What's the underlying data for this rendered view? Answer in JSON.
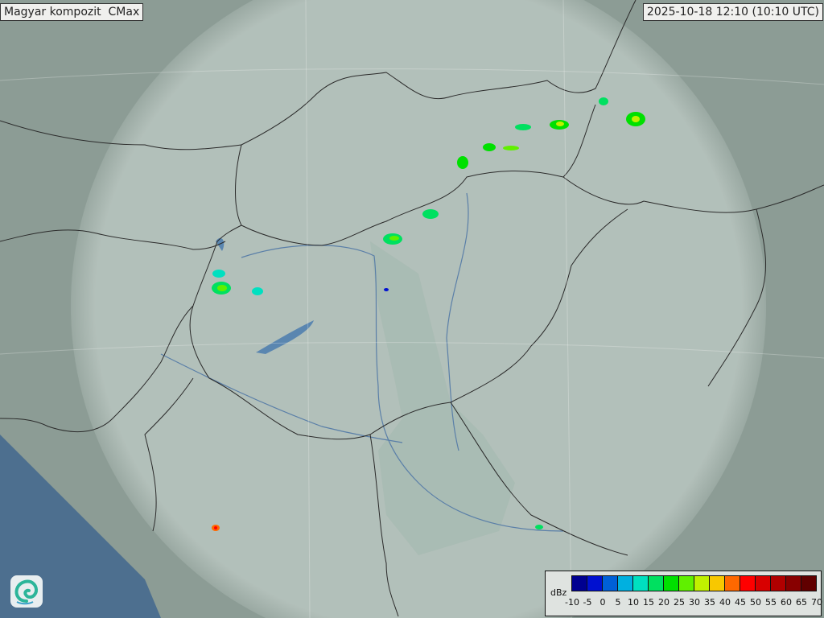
{
  "title": "Magyar kompozit  CMax",
  "timestamp": "2025-10-18 12:10 (10:10 UTC)",
  "legend": {
    "unit": "dBz",
    "ticks": [
      "-10",
      "-5",
      "0",
      "5",
      "10",
      "15",
      "20",
      "25",
      "30",
      "35",
      "40",
      "45",
      "50",
      "55",
      "60",
      "65",
      "70"
    ],
    "colors": [
      "#000090",
      "#0010d0",
      "#0060d8",
      "#00b0e0",
      "#00e0c0",
      "#00e060",
      "#00e000",
      "#60f000",
      "#c0f000",
      "#f8c800",
      "#ff6800",
      "#ff0000",
      "#d80000",
      "#b00000",
      "#880000",
      "#600000"
    ]
  },
  "colors": {
    "terrain": "#8a9a94",
    "coverage": "#c8d6d0",
    "lake": "#5a86b0",
    "sea": "#4d6f8f",
    "border": "#2a2a2a"
  },
  "logo": "omsz-swirl-logo"
}
